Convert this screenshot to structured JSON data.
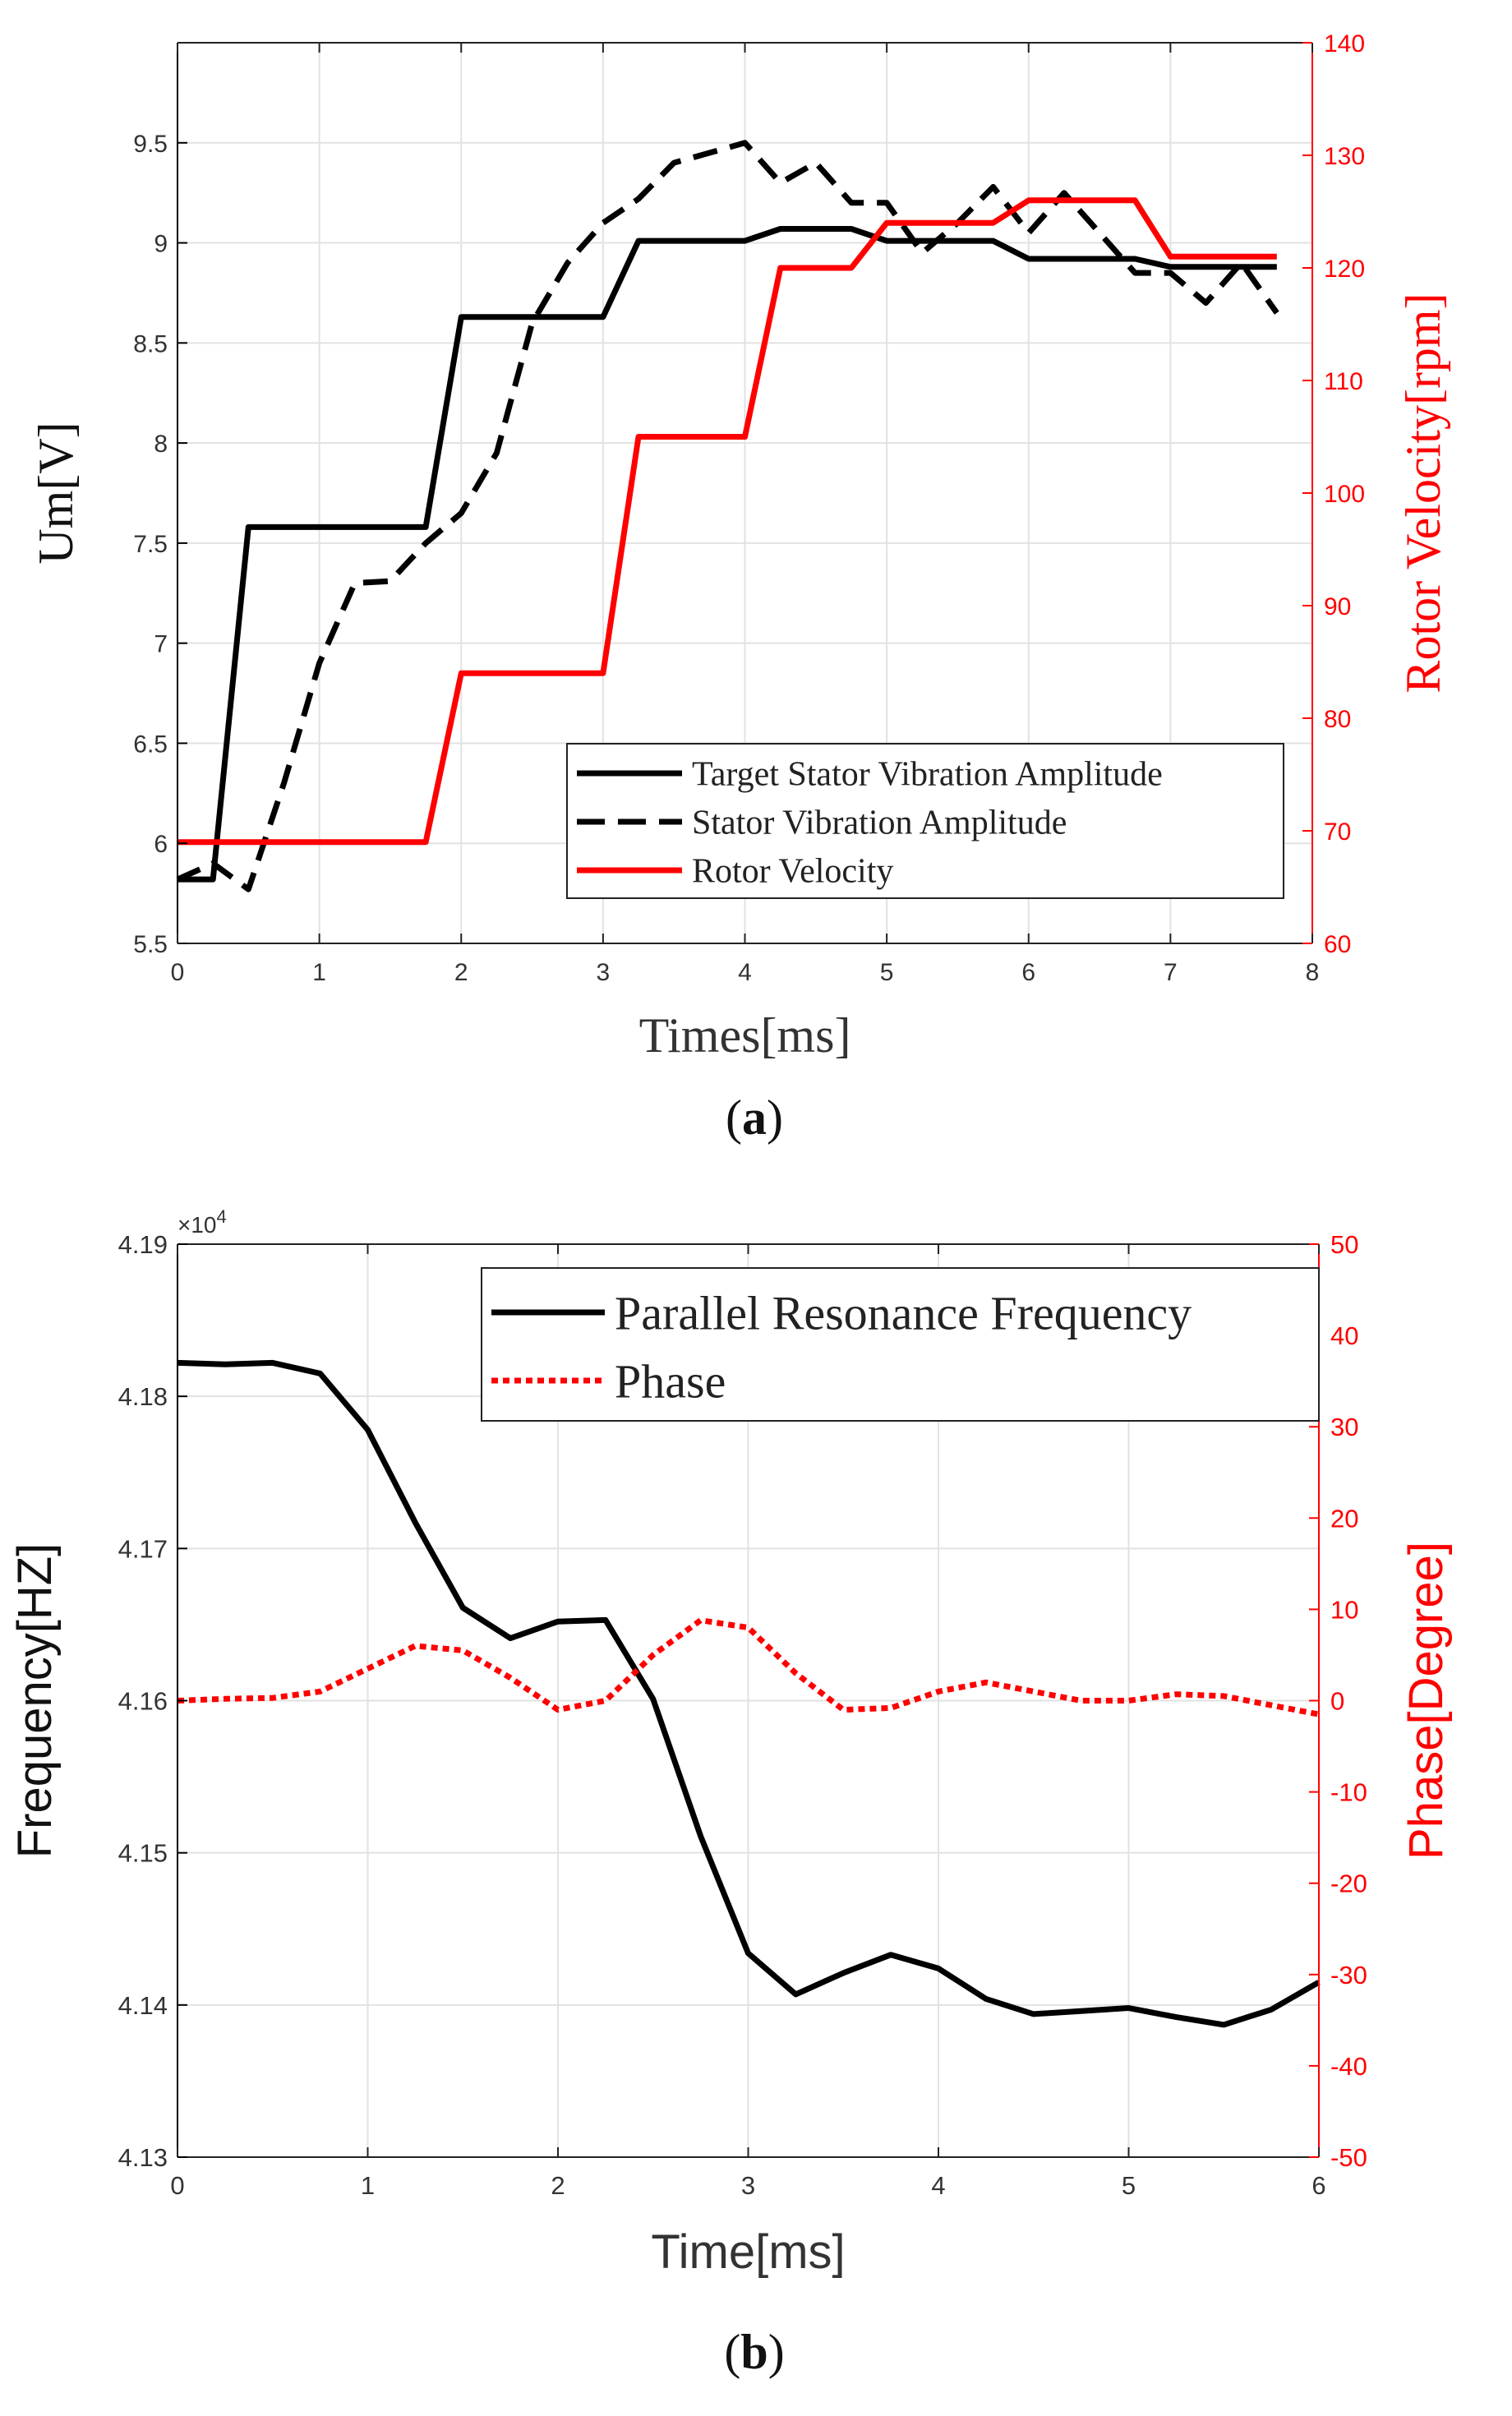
{
  "panels": [
    {
      "caption_letter": "a",
      "caption_open": "(",
      "caption_close": ")",
      "colors": {
        "left_axis": "#000000",
        "right_axis": "#ff0000",
        "grid": "#e2e2e2"
      }
    },
    {
      "caption_letter": "b",
      "caption_open": "(",
      "caption_close": ")",
      "colors": {
        "left_axis": "#000000",
        "right_axis": "#ff0000",
        "grid": "#e2e2e2"
      }
    }
  ],
  "chart_data": [
    {
      "type": "line",
      "title": "",
      "xlabel": "Times[ms]",
      "ylabel": "Um[V]",
      "ylabel_right": "Rotor Velocity[rpm]",
      "xlim": [
        0,
        8
      ],
      "ylim": [
        5.5,
        10
      ],
      "ylim_right": [
        60,
        140
      ],
      "xticks": [
        0,
        1,
        2,
        3,
        4,
        5,
        6,
        7,
        8
      ],
      "xtick_labels": [
        "0",
        "1",
        "2",
        "3",
        "4",
        "5",
        "6",
        "7",
        "8"
      ],
      "yticks": [
        5.5,
        6,
        6.5,
        7,
        7.5,
        8,
        8.5,
        9,
        9.5
      ],
      "ytick_labels": [
        "5.5",
        "6",
        "6.5",
        "7",
        "7.5",
        "8",
        "8.5",
        "9",
        "9.5"
      ],
      "yticks_right": [
        60,
        70,
        80,
        90,
        100,
        110,
        120,
        130,
        140
      ],
      "ytick_labels_right": [
        "60",
        "70",
        "80",
        "90",
        "100",
        "110",
        "120",
        "130",
        "140"
      ],
      "grid": true,
      "legend_position": "bottom-right",
      "series": [
        {
          "name": "Target Stator Vibration Amplitude",
          "axis": "left",
          "color": "#000000",
          "dash": "solid",
          "x": [
            0,
            0.25,
            0.5,
            1.75,
            2.0,
            3.0,
            3.25,
            4.0,
            4.25,
            4.75,
            5.0,
            5.75,
            6.0,
            6.75,
            7.0,
            7.75
          ],
          "y": [
            5.82,
            5.82,
            7.58,
            7.58,
            8.63,
            8.63,
            9.01,
            9.01,
            9.07,
            9.07,
            9.01,
            9.01,
            8.92,
            8.92,
            8.88,
            8.88
          ]
        },
        {
          "name": "Stator Vibration Amplitude",
          "axis": "left",
          "color": "#000000",
          "dash": "dashed",
          "x": [
            0,
            0.25,
            0.5,
            0.75,
            1.0,
            1.25,
            1.5,
            1.75,
            2.0,
            2.25,
            2.5,
            2.75,
            3.0,
            3.25,
            3.5,
            3.75,
            4.0,
            4.25,
            4.5,
            4.75,
            5.0,
            5.25,
            5.5,
            5.75,
            6.0,
            6.25,
            6.5,
            6.75,
            7.0,
            7.25,
            7.5,
            7.75
          ],
          "y": [
            5.82,
            5.9,
            5.77,
            6.3,
            6.9,
            7.3,
            7.31,
            7.5,
            7.65,
            7.95,
            8.6,
            8.9,
            9.1,
            9.22,
            9.4,
            9.45,
            9.5,
            9.3,
            9.4,
            9.2,
            9.2,
            8.95,
            9.1,
            9.28,
            9.05,
            9.25,
            9.05,
            8.85,
            8.85,
            8.7,
            8.9,
            8.65
          ]
        },
        {
          "name": "Rotor Velocity",
          "axis": "right",
          "color": "#ff0000",
          "dash": "solid",
          "x": [
            0,
            1.75,
            2.0,
            3.0,
            3.25,
            4.0,
            4.25,
            4.75,
            5.0,
            5.75,
            6.0,
            6.75,
            7.0,
            7.75
          ],
          "y": [
            69,
            69,
            84,
            84,
            105,
            105,
            120,
            120,
            124,
            124,
            126,
            126,
            121,
            121
          ]
        }
      ]
    },
    {
      "type": "line",
      "title": "",
      "xlabel": "Time[ms]",
      "ylabel": "Frequency[HZ]",
      "ylabel_right": "Phase[Degree]",
      "exponent_label": "×10",
      "exponent_power": "4",
      "xlim": [
        0,
        6
      ],
      "ylim": [
        4.13,
        4.19
      ],
      "ylim_right": [
        -50,
        50
      ],
      "xticks": [
        0,
        1,
        2,
        3,
        4,
        5,
        6
      ],
      "xtick_labels": [
        "0",
        "1",
        "2",
        "3",
        "4",
        "5",
        "6"
      ],
      "yticks": [
        4.13,
        4.14,
        4.15,
        4.16,
        4.17,
        4.18,
        4.19
      ],
      "ytick_labels": [
        "4.13",
        "4.14",
        "4.15",
        "4.16",
        "4.17",
        "4.18",
        "4.19"
      ],
      "yticks_right": [
        -50,
        -40,
        -30,
        -20,
        -10,
        0,
        10,
        20,
        30,
        40,
        50
      ],
      "ytick_labels_right": [
        "-50",
        "-40",
        "-30",
        "-20",
        "-10",
        "0",
        "10",
        "20",
        "30",
        "40",
        "50"
      ],
      "grid": true,
      "legend_position": "top-right",
      "series": [
        {
          "name": "Parallel Resonance Frequency",
          "axis": "left",
          "color": "#000000",
          "dash": "solid",
          "x": [
            0,
            0.25,
            0.5,
            0.75,
            1.0,
            1.25,
            1.5,
            1.75,
            2.0,
            2.25,
            2.5,
            2.75,
            3.0,
            3.25,
            3.5,
            3.75,
            4.0,
            4.25,
            4.5,
            4.75,
            5.0,
            5.25,
            5.5,
            5.75,
            6.0
          ],
          "y": [
            4.1822,
            4.1821,
            4.1822,
            4.1815,
            4.1778,
            4.1717,
            4.1661,
            4.1641,
            4.1652,
            4.1653,
            4.1601,
            4.1511,
            4.1434,
            4.1407,
            4.1421,
            4.1433,
            4.1424,
            4.1404,
            4.1394,
            4.1396,
            4.1398,
            4.1392,
            4.1387,
            4.1397,
            4.1415
          ]
        },
        {
          "name": "Phase",
          "axis": "right",
          "color": "#ff0000",
          "dash": "dotted",
          "x": [
            0,
            0.25,
            0.5,
            0.75,
            1.0,
            1.25,
            1.5,
            1.75,
            2.0,
            2.25,
            2.5,
            2.75,
            3.0,
            3.25,
            3.5,
            3.75,
            4.0,
            4.25,
            4.5,
            4.75,
            5.0,
            5.25,
            5.5,
            5.75,
            6.0
          ],
          "y": [
            0,
            0.2,
            0.3,
            1,
            3.5,
            6,
            5.5,
            2.5,
            -1,
            0,
            5,
            8.8,
            8,
            3,
            -1,
            -0.8,
            1,
            2,
            1,
            0,
            0,
            0.7,
            0.5,
            -0.5,
            -1.5
          ]
        }
      ]
    }
  ]
}
